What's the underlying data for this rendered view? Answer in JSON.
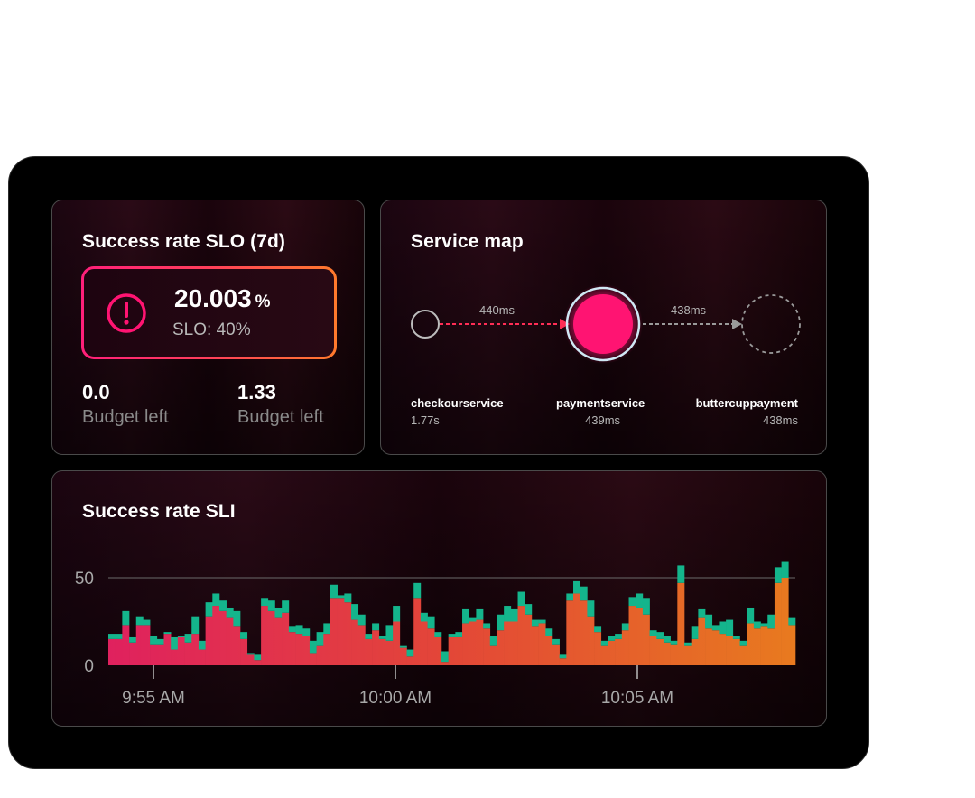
{
  "colors": {
    "accent_pink": "#ff1472",
    "accent_orange": "#ff7a2c",
    "teal": "#14b58c",
    "panel_border": "#4a4a4a"
  },
  "slo_card": {
    "title": "Success rate SLO (7d)",
    "value": "20.003",
    "unit": "%",
    "target": "SLO: 40%",
    "alert_icon": "exclamation-circle-icon",
    "budgets": [
      {
        "value": "0.0",
        "label": "Budget left"
      },
      {
        "value": "1.33",
        "label": "Budget left"
      }
    ]
  },
  "service_map": {
    "title": "Service map",
    "edges": [
      {
        "label": "440ms",
        "status": "error"
      },
      {
        "label": "438ms",
        "status": "normal"
      }
    ],
    "services": [
      {
        "name": "checkourservice",
        "latency": "1.77s"
      },
      {
        "name": "paymentservice",
        "latency": "439ms"
      },
      {
        "name": "buttercuppayment",
        "latency": "438ms"
      }
    ]
  },
  "sli_card": {
    "title": "Success rate SLI"
  },
  "chart_data": {
    "type": "bar",
    "title": "Success rate SLI",
    "xlabel": "",
    "ylabel": "",
    "ylim": [
      0,
      70
    ],
    "yticks": [
      0,
      50
    ],
    "xtick_labels": [
      "9:55 AM",
      "10:00 AM",
      "10:05 AM"
    ],
    "grid": "horizontal at 50",
    "series": [
      {
        "name": "",
        "color": "orange-gradient",
        "values": [
          15,
          15,
          23,
          13,
          23,
          23,
          12,
          12,
          18,
          9,
          16,
          13,
          18,
          9,
          28,
          34,
          31,
          27,
          22,
          15,
          6,
          3,
          34,
          31,
          27,
          30,
          19,
          18,
          17,
          7,
          11,
          18,
          38,
          38,
          36,
          26,
          23,
          15,
          20,
          15,
          14,
          25,
          10,
          5,
          38,
          25,
          21,
          16,
          2,
          16,
          16,
          24,
          25,
          26,
          21,
          11,
          20,
          25,
          25,
          34,
          29,
          22,
          24,
          17,
          12,
          4,
          37,
          41,
          37,
          28,
          19,
          11,
          14,
          15,
          20,
          34,
          33,
          29,
          17,
          15,
          13,
          12,
          47,
          11,
          15,
          27,
          21,
          20,
          18,
          17,
          15,
          11,
          24,
          21,
          22,
          21,
          47,
          50,
          23
        ]
      },
      {
        "name": "",
        "color": "teal",
        "values": [
          3,
          3,
          8,
          3,
          5,
          3,
          5,
          3,
          1,
          7,
          1,
          5,
          10,
          5,
          8,
          7,
          6,
          6,
          9,
          4,
          1,
          3,
          4,
          6,
          6,
          7,
          3,
          5,
          4,
          7,
          8,
          6,
          8,
          2,
          5,
          9,
          6,
          3,
          4,
          2,
          9,
          9,
          1,
          4,
          9,
          5,
          7,
          3,
          6,
          2,
          3,
          8,
          2,
          6,
          3,
          6,
          9,
          9,
          7,
          8,
          6,
          4,
          2,
          4,
          3,
          2,
          4,
          7,
          8,
          9,
          3,
          3,
          3,
          3,
          4,
          5,
          8,
          9,
          3,
          4,
          4,
          2,
          10,
          2,
          7,
          5,
          8,
          3,
          7,
          9,
          2,
          3,
          9,
          4,
          2,
          8,
          9,
          9,
          4
        ]
      }
    ]
  }
}
